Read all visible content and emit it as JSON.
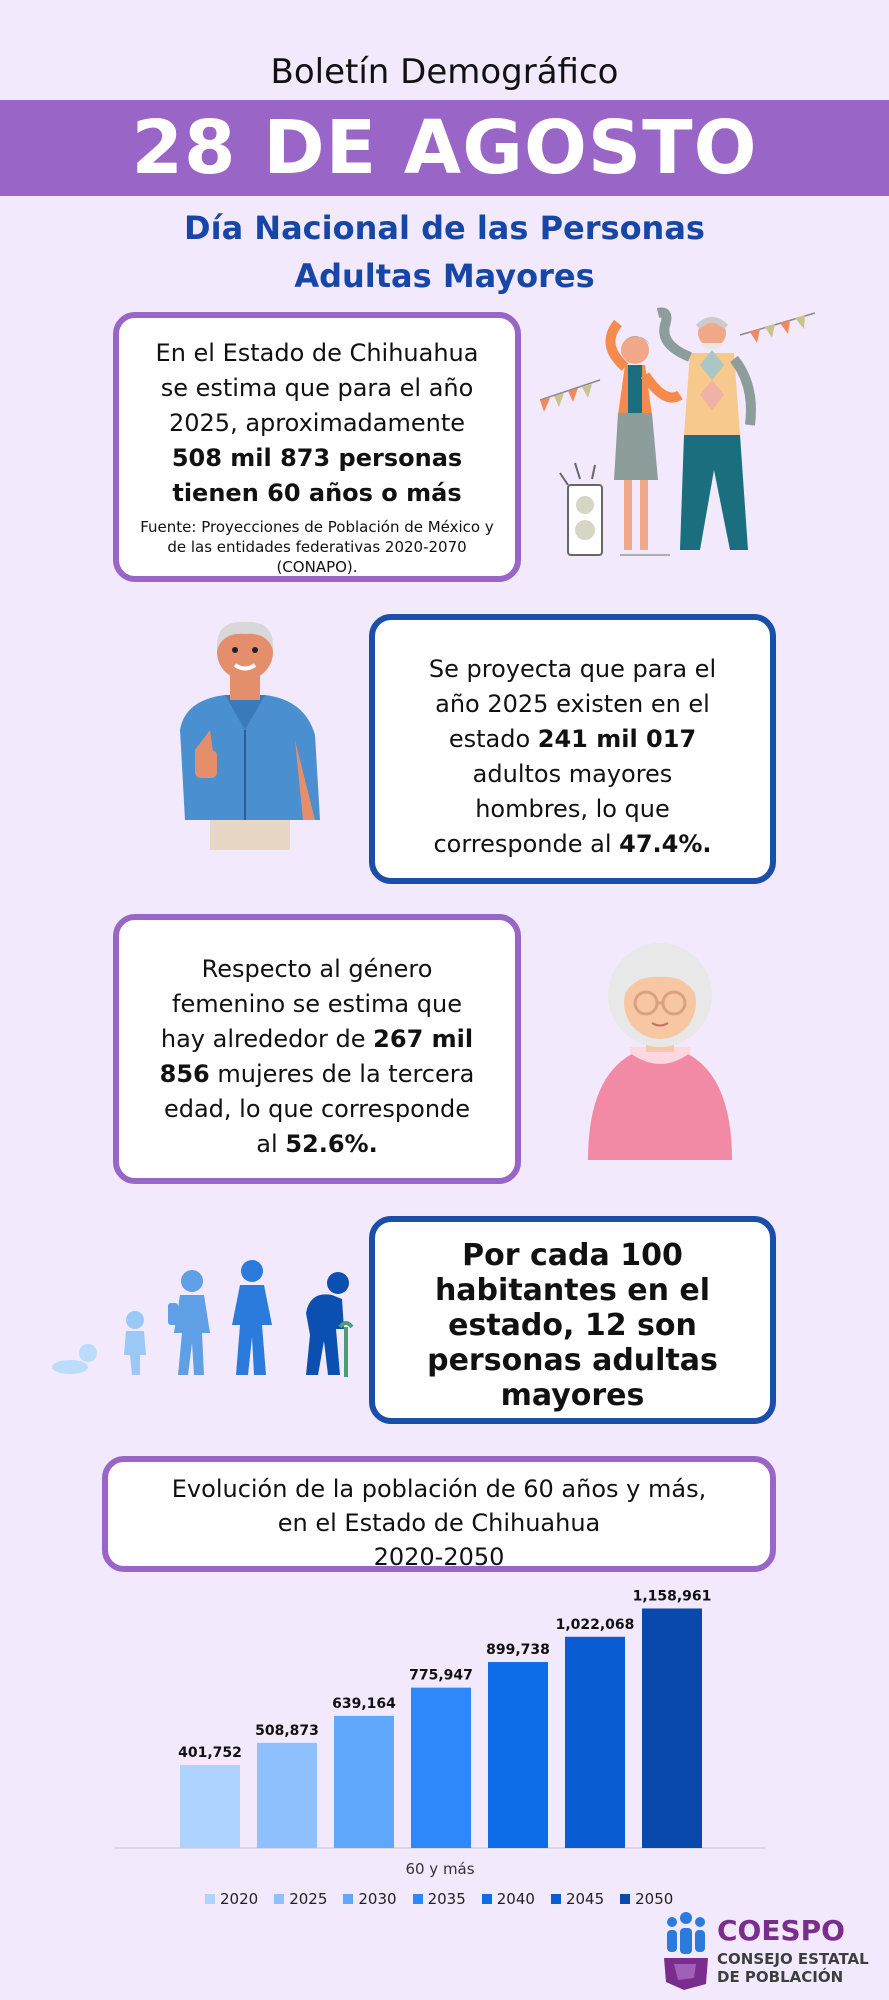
{
  "header": {
    "title": "Boletín Demográfico",
    "date": "28 DE AGOSTO",
    "subtitle_line1": "Día Nacional de las Personas",
    "subtitle_line2": "Adultas Mayores"
  },
  "box1": {
    "line1": "En el Estado de Chihuahua",
    "line2": "se estima que para el año",
    "line3": "2025, aproximadamente",
    "bold1": "508 mil 873 personas",
    "bold2": "tienen 60 años o más",
    "source": "Fuente: Proyecciones de Población de México y de las entidades federativas 2020-2070 (CONAPO)."
  },
  "box2": {
    "line1": "Se proyecta que para el",
    "line2": "año 2025 existen en el",
    "line3_pre": "estado ",
    "line3_bold": "241 mil 017",
    "line4": "adultos mayores",
    "line5": "hombres, lo que",
    "line6_pre": "corresponde al ",
    "line6_bold": "47.4%."
  },
  "box3": {
    "line1": "Respecto al género",
    "line2": "femenino se estima que",
    "line3_pre": "hay alrededor de ",
    "line3_bold": "267 mil",
    "line4_bold": "856",
    "line4_post": " mujeres de la tercera",
    "line5": "edad, lo que corresponde",
    "line6_pre": "al ",
    "line6_bold": "52.6%."
  },
  "box4": {
    "text": "Por cada 100 habitantes en el estado, 12 son personas adultas mayores"
  },
  "box5": {
    "line1": "Evolución de la población de 60 años y más,",
    "line2": "en el Estado de Chihuahua",
    "line3": "2020-2050"
  },
  "chart_data": {
    "type": "bar",
    "categories": [
      "2020",
      "2025",
      "2030",
      "2035",
      "2040",
      "2045",
      "2050"
    ],
    "values": [
      401752,
      508873,
      639164,
      775947,
      899738,
      1022068,
      1158961
    ],
    "value_labels": [
      "401,752",
      "508,873",
      "639,164",
      "775,947",
      "899,738",
      "1,022,068",
      "1,158,961"
    ],
    "colors": [
      "#aed3fe",
      "#8ec1fd",
      "#5ea7fa",
      "#2e88f7",
      "#0d6de9",
      "#0a5cd3",
      "#0949ab"
    ],
    "xlabel": "60 y más",
    "ylim": [
      0,
      1200000
    ],
    "legend_position": "bottom"
  },
  "logo": {
    "name": "COESPO",
    "sub1": "CONSEJO ESTATAL",
    "sub2": "DE POBLACIÓN"
  }
}
